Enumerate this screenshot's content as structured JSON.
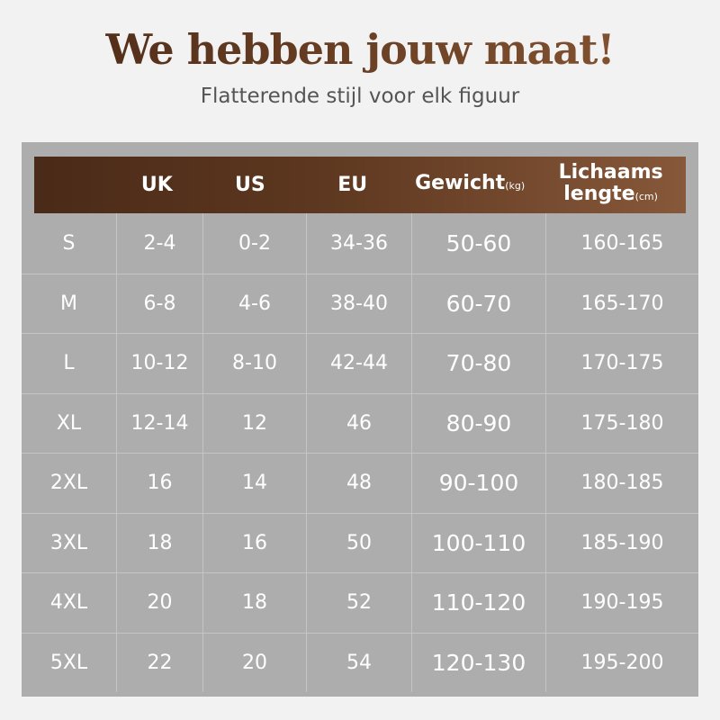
{
  "title": "We hebben jouw maat!",
  "subtitle": "Flatterende stijl voor elk figuur",
  "header": {
    "size": "",
    "uk": "UK",
    "us": "US",
    "eu": "EU",
    "weight": "Gewicht",
    "weight_unit": "(kg)",
    "height_line1": "Lichaams",
    "height_line2": "lengte",
    "height_unit": "(cm)"
  },
  "rows": [
    [
      "S",
      "2-4",
      "0-2",
      "34-36",
      "50-60",
      "160-165"
    ],
    [
      "M",
      "6-8",
      "4-6",
      "38-40",
      "60-70",
      "165-170"
    ],
    [
      "L",
      "10-12",
      "8-10",
      "42-44",
      "70-80",
      "170-175"
    ],
    [
      "XL",
      "12-14",
      "12",
      "46",
      "80-90",
      "175-180"
    ],
    [
      "2XL",
      "16",
      "14",
      "48",
      "90-100",
      "180-185"
    ],
    [
      "3XL",
      "18",
      "16",
      "50",
      "100-110",
      "185-190"
    ],
    [
      "4XL",
      "20",
      "18",
      "52",
      "110-120",
      "190-195"
    ],
    [
      "5XL",
      "22",
      "20",
      "54",
      "120-130",
      "195-200"
    ]
  ],
  "colors": {
    "brand_dark": "#4a2a18",
    "brand_light": "#87583a",
    "table_bg": "#adadad"
  }
}
